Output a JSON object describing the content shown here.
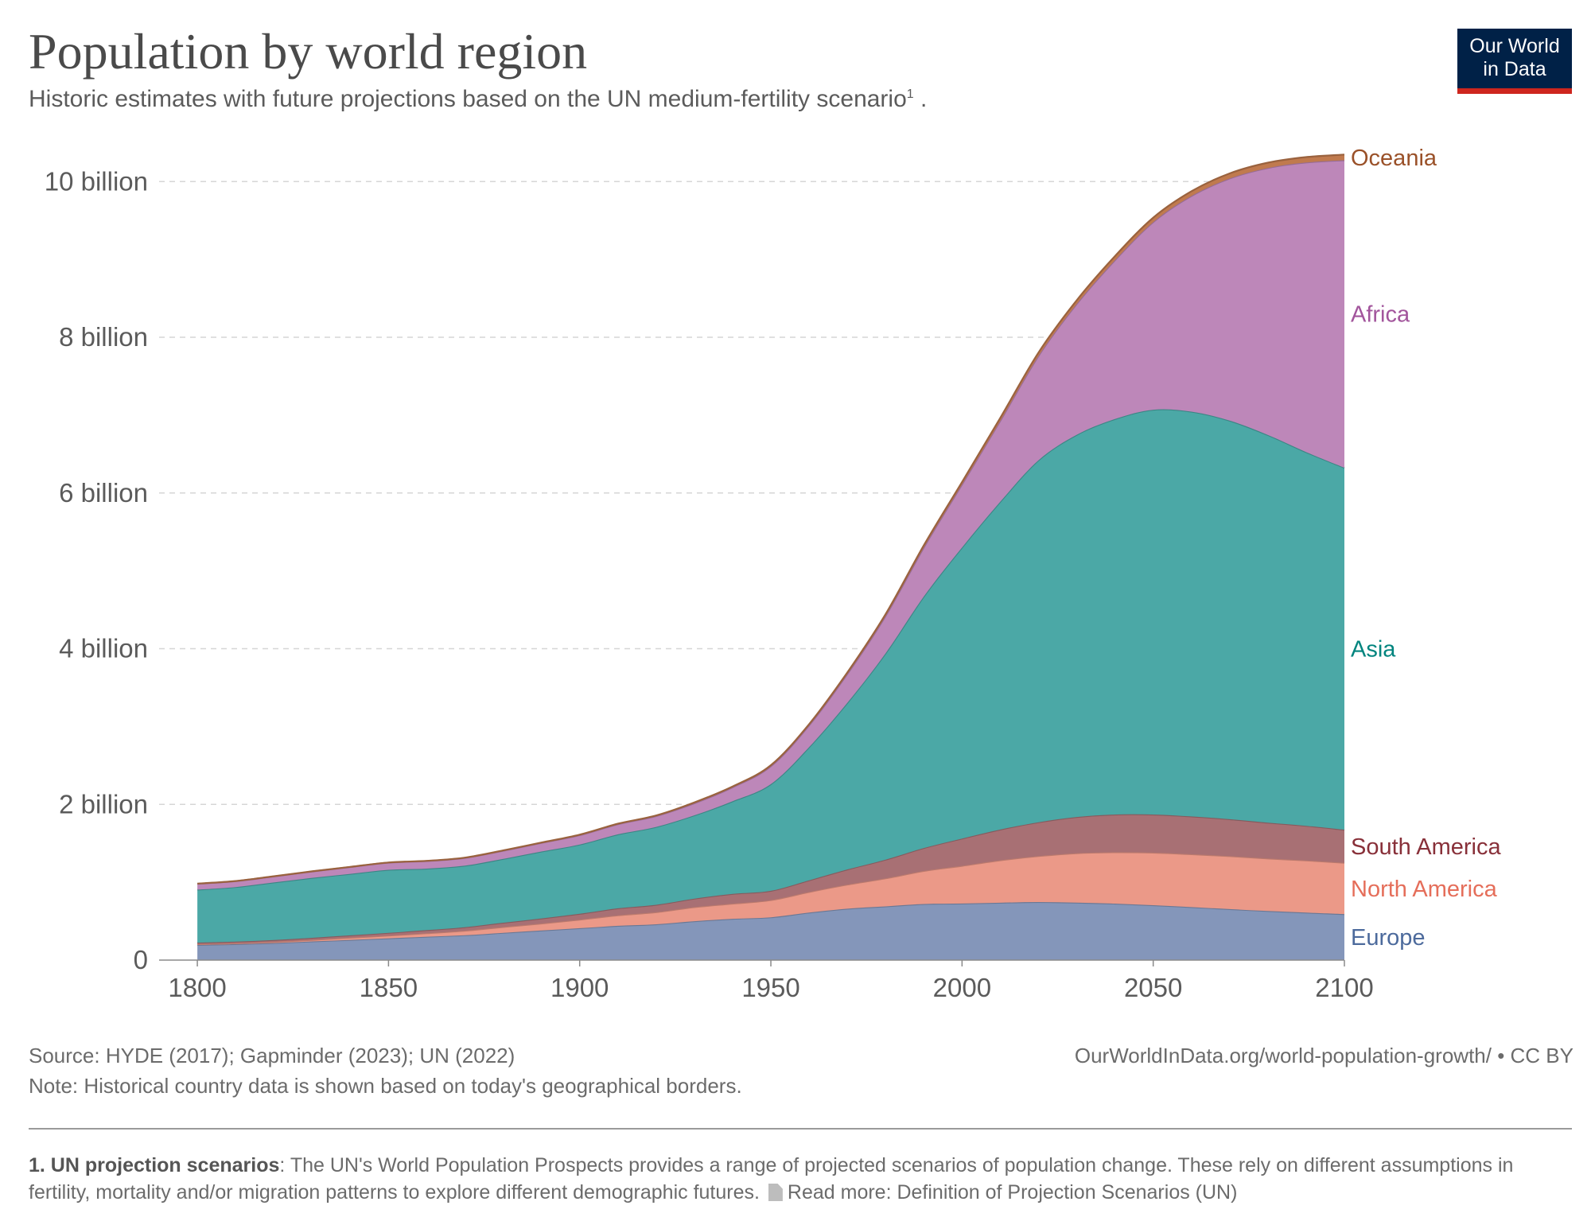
{
  "header": {
    "title": "Population by world region",
    "subtitle": "Historic estimates with future projections based on the UN medium-fertility scenario",
    "subtitle_sup": "1",
    "subtitle_end": " ."
  },
  "logo": {
    "line1": "Our World",
    "line2": "in Data",
    "bg_color": "#002147",
    "accent_color": "#ce261e"
  },
  "chart_data": {
    "type": "area",
    "stacked": true,
    "x": [
      1800,
      1810,
      1820,
      1830,
      1840,
      1850,
      1860,
      1870,
      1880,
      1890,
      1900,
      1910,
      1920,
      1930,
      1940,
      1950,
      1960,
      1970,
      1980,
      1990,
      2000,
      2010,
      2020,
      2030,
      2040,
      2050,
      2060,
      2070,
      2080,
      2090,
      2100
    ],
    "series": [
      {
        "name": "Europe",
        "color": "#8496ba",
        "label_color": "#4c6a9c",
        "values": [
          0.195,
          0.205,
          0.22,
          0.24,
          0.26,
          0.28,
          0.3,
          0.32,
          0.35,
          0.38,
          0.41,
          0.44,
          0.46,
          0.5,
          0.53,
          0.55,
          0.61,
          0.66,
          0.69,
          0.72,
          0.726,
          0.737,
          0.746,
          0.738,
          0.725,
          0.705,
          0.68,
          0.655,
          0.63,
          0.61,
          0.59
        ]
      },
      {
        "name": "North America",
        "color": "#eb9988",
        "label_color": "#e56e5a",
        "values": [
          0.01,
          0.012,
          0.015,
          0.02,
          0.028,
          0.035,
          0.045,
          0.058,
          0.075,
          0.09,
          0.11,
          0.135,
          0.155,
          0.18,
          0.195,
          0.22,
          0.265,
          0.31,
          0.36,
          0.425,
          0.485,
          0.545,
          0.59,
          0.635,
          0.66,
          0.675,
          0.68,
          0.68,
          0.675,
          0.67,
          0.66
        ]
      },
      {
        "name": "South America",
        "color": "#a87074",
        "label_color": "#883039",
        "values": [
          0.02,
          0.021,
          0.022,
          0.026,
          0.03,
          0.035,
          0.04,
          0.045,
          0.055,
          0.065,
          0.075,
          0.09,
          0.095,
          0.11,
          0.125,
          0.12,
          0.15,
          0.195,
          0.24,
          0.295,
          0.35,
          0.395,
          0.435,
          0.465,
          0.485,
          0.49,
          0.485,
          0.475,
          0.46,
          0.445,
          0.425
        ]
      },
      {
        "name": "Asia",
        "color": "#4ba8a6",
        "label_color": "#00847e",
        "values": [
          0.68,
          0.7,
          0.74,
          0.77,
          0.79,
          0.81,
          0.79,
          0.79,
          0.82,
          0.86,
          0.89,
          0.95,
          1.0,
          1.07,
          1.19,
          1.37,
          1.71,
          2.14,
          2.65,
          3.23,
          3.74,
          4.21,
          4.65,
          4.91,
          5.08,
          5.2,
          5.2,
          5.12,
          4.98,
          4.8,
          4.65
        ]
      },
      {
        "name": "Africa",
        "color": "#bd87b9",
        "label_color": "#a2559c",
        "values": [
          0.075,
          0.076,
          0.078,
          0.082,
          0.087,
          0.092,
          0.097,
          0.1,
          0.105,
          0.11,
          0.12,
          0.13,
          0.14,
          0.155,
          0.18,
          0.23,
          0.28,
          0.37,
          0.48,
          0.63,
          0.81,
          1.04,
          1.34,
          1.68,
          2.04,
          2.41,
          2.77,
          3.11,
          3.43,
          3.72,
          3.95
        ]
      },
      {
        "name": "Oceania",
        "color": "#c07a4e",
        "label_color": "#9a5129",
        "values": [
          0.002,
          0.002,
          0.002,
          0.002,
          0.002,
          0.002,
          0.003,
          0.003,
          0.004,
          0.005,
          0.006,
          0.007,
          0.008,
          0.01,
          0.011,
          0.013,
          0.016,
          0.02,
          0.023,
          0.027,
          0.031,
          0.037,
          0.043,
          0.048,
          0.053,
          0.057,
          0.061,
          0.065,
          0.068,
          0.07,
          0.072
        ]
      }
    ],
    "x_ticks": [
      1800,
      1850,
      1900,
      1950,
      2000,
      2050,
      2100
    ],
    "x_tick_labels": [
      "1800",
      "1850",
      "1900",
      "1950",
      "2000",
      "2050",
      "2100"
    ],
    "y_ticks": [
      0,
      2,
      4,
      6,
      8,
      10
    ],
    "y_tick_labels": [
      "0",
      "2 billion",
      "4 billion",
      "6 billion",
      "8 billion",
      "10 billion"
    ],
    "xlim": [
      1790,
      2100
    ],
    "ylim": [
      0,
      10.8
    ],
    "grid": "horizontal dashed",
    "legend": "inline labels at right end"
  },
  "footer": {
    "source": "Source: HYDE (2017); Gapminder (2023); UN (2022)",
    "note": "Note: Historical country data is shown based on today's geographical borders.",
    "url": "OurWorldInData.org/world-population-growth/ • CC BY",
    "footnote_title": "1. UN projection scenarios",
    "footnote_text": ": The UN's World Population Prospects provides a range of projected scenarios of population change. These rely on different assumptions in fertility, mortality and/or migration patterns to explore different demographic futures. ",
    "footnote_link": "Read more: Definition of Projection Scenarios (UN)"
  }
}
